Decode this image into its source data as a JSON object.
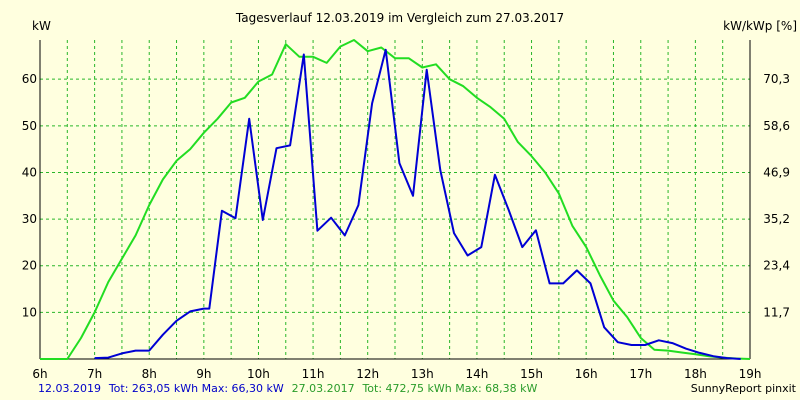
{
  "chart_data": {
    "type": "line",
    "title": "Tagesverlauf 12.03.2019 im Vergleich zum 27.03.2017",
    "ylabel_left": "kW",
    "ylabel_right": "kW/kWp [%]",
    "x_ticks": [
      "6h",
      "7h",
      "8h",
      "9h",
      "10h",
      "11h",
      "12h",
      "13h",
      "14h",
      "15h",
      "16h",
      "17h",
      "18h",
      "19h"
    ],
    "xlim": [
      6,
      19
    ],
    "y_ticks_left": [
      "10",
      "20",
      "30",
      "40",
      "50",
      "60"
    ],
    "y_tick_values_left": [
      10,
      20,
      30,
      40,
      50,
      60
    ],
    "y_ticks_right": [
      "11,7",
      "23,4",
      "35,2",
      "46,9",
      "58,6",
      "70,3"
    ],
    "ylim": [
      0,
      68.4
    ],
    "grid": true,
    "colors": {
      "background": "#ffffdf",
      "grid": "#29b629",
      "axis": "#000000"
    },
    "series": [
      {
        "name": "12.03.2019",
        "color": "#0000d4",
        "x": [
          7.0,
          7.25,
          7.5,
          7.75,
          8.0,
          8.25,
          8.5,
          8.75,
          9.0,
          9.1,
          9.33,
          9.58,
          9.83,
          10.08,
          10.33,
          10.58,
          10.83,
          11.08,
          11.33,
          11.58,
          11.83,
          12.08,
          12.33,
          12.58,
          12.83,
          13.08,
          13.33,
          13.58,
          13.83,
          14.08,
          14.33,
          14.58,
          14.83,
          15.08,
          15.33,
          15.58,
          15.83,
          16.08,
          16.33,
          16.58,
          16.83,
          17.08,
          17.33,
          17.58,
          17.83,
          18.08,
          18.33,
          18.58,
          18.83
        ],
        "values": [
          0.2,
          0.3,
          1.2,
          1.8,
          1.8,
          5.2,
          8.2,
          10.2,
          10.8,
          10.8,
          31.8,
          30.2,
          51.5,
          29.8,
          45.2,
          45.8,
          65.3,
          27.5,
          30.3,
          26.5,
          33.0,
          54.8,
          66.3,
          42.0,
          35.0,
          62.0,
          40.5,
          27.0,
          22.2,
          24.0,
          39.5,
          32.0,
          24.0,
          27.6,
          16.2,
          16.2,
          19.0,
          16.2,
          6.8,
          3.6,
          3.0,
          3.0,
          4.0,
          3.4,
          2.2,
          1.3,
          0.6,
          0.2,
          0.0
        ]
      },
      {
        "name": "27.03.2017",
        "color": "#22dd22",
        "x": [
          6.0,
          6.5,
          6.75,
          7.0,
          7.25,
          7.5,
          7.75,
          8.0,
          8.25,
          8.5,
          8.75,
          9.0,
          9.25,
          9.5,
          9.75,
          10.0,
          10.25,
          10.5,
          10.75,
          11.0,
          11.25,
          11.5,
          11.75,
          12.0,
          12.25,
          12.5,
          12.75,
          13.0,
          13.25,
          13.5,
          13.75,
          14.0,
          14.25,
          14.5,
          14.75,
          15.0,
          15.25,
          15.5,
          15.75,
          16.0,
          16.25,
          16.5,
          16.75,
          17.0,
          17.25,
          17.5,
          17.75,
          18.0,
          18.25,
          18.5,
          18.75,
          19.0
        ],
        "values": [
          0.0,
          0.0,
          4.5,
          10.0,
          16.5,
          21.5,
          26.5,
          33.0,
          38.5,
          42.5,
          45.0,
          48.5,
          51.5,
          55.0,
          56.0,
          59.5,
          61.0,
          67.5,
          64.8,
          64.8,
          63.5,
          67.0,
          68.4,
          66.0,
          66.8,
          64.5,
          64.5,
          62.5,
          63.2,
          60.0,
          58.5,
          56.0,
          54.0,
          51.5,
          46.5,
          43.5,
          40.0,
          35.5,
          28.5,
          24.0,
          18.0,
          12.5,
          9.0,
          4.5,
          2.0,
          1.8,
          1.4,
          1.0,
          0.6,
          0.3,
          0.1,
          0.0
        ]
      }
    ],
    "footer": {
      "left_date": "12.03.2019",
      "left_stats": "Tot: 263,05 kWh Max: 66,30 kW",
      "mid_date": "27.03.2017",
      "mid_stats": "Tot: 472,75 kWh Max: 68,38 kW",
      "credit": "SunnyReport pinxit"
    }
  }
}
